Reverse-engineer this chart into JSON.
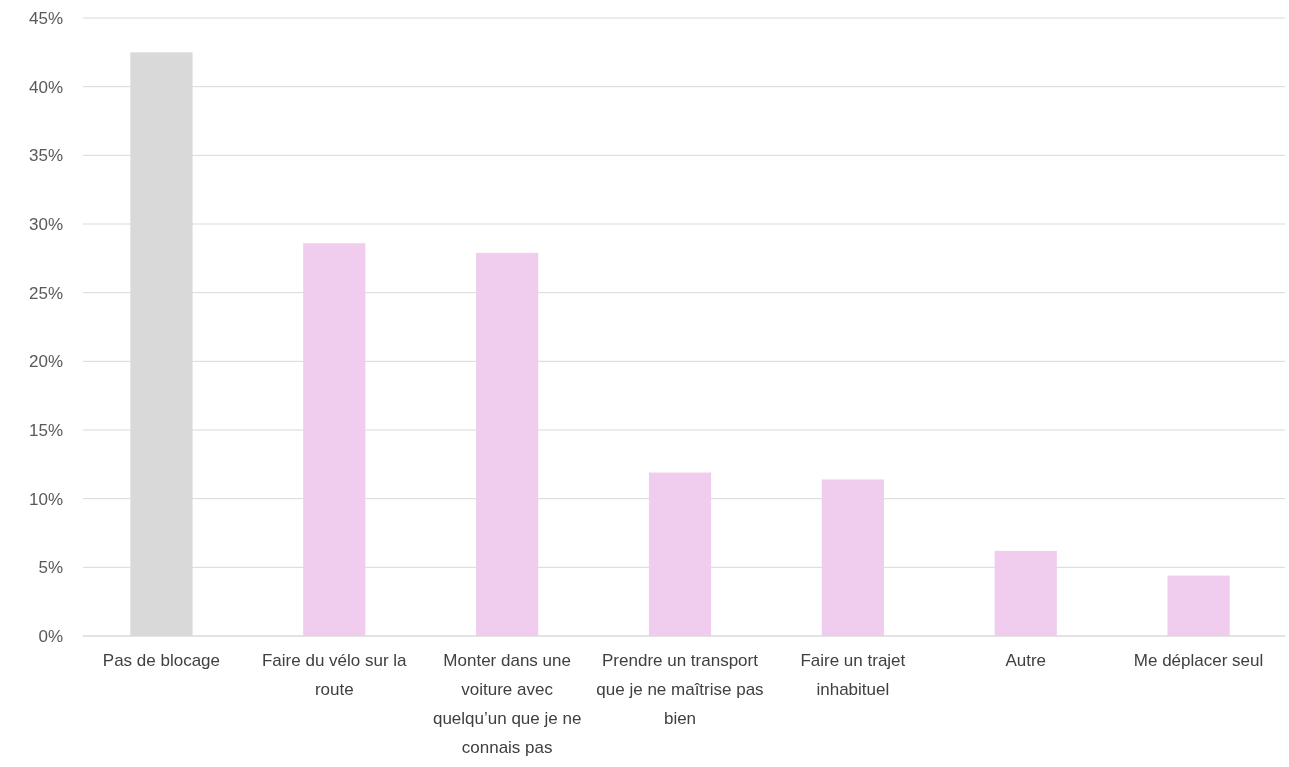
{
  "chart_data": {
    "type": "bar",
    "categories": [
      "Pas de blocage",
      "Faire du vélo sur la route",
      "Monter dans une voiture avec quelqu’un que je ne connais pas",
      "Prendre un transport que je ne maîtrise pas bien",
      "Faire un trajet inhabituel",
      "Autre",
      "Me déplacer seul"
    ],
    "values": [
      42.5,
      28.6,
      27.9,
      11.9,
      11.4,
      6.2,
      4.4
    ],
    "colors": [
      "#d9d9d9",
      "#f0cdef",
      "#f0cdef",
      "#f0cdef",
      "#f0cdef",
      "#f0cdef",
      "#f0cdef"
    ],
    "ylim": [
      0,
      45
    ],
    "yticks": [
      {
        "value": 0,
        "label": "0%"
      },
      {
        "value": 5,
        "label": "5%"
      },
      {
        "value": 10,
        "label": "10%"
      },
      {
        "value": 15,
        "label": "15%"
      },
      {
        "value": 20,
        "label": "20%"
      },
      {
        "value": 25,
        "label": "25%"
      },
      {
        "value": 30,
        "label": "30%"
      },
      {
        "value": 35,
        "label": "35%"
      },
      {
        "value": 40,
        "label": "40%"
      },
      {
        "value": 45,
        "label": "45%"
      }
    ],
    "grid": "y"
  }
}
